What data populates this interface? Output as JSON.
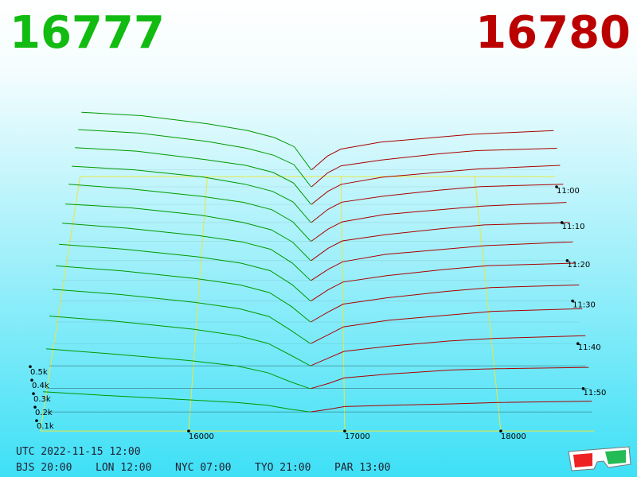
{
  "chart_data": {
    "type": "depth",
    "best_bid": "16777",
    "best_ask": "16780",
    "bid_color": "#009900",
    "ask_color": "#aa0000",
    "grid_color": "#e8e840",
    "bid_prices": [
      15050,
      15500,
      16000,
      16300,
      16500,
      16650,
      16777
    ],
    "ask_prices": [
      16780,
      16900,
      17000,
      17300,
      17700,
      18000,
      18600
    ],
    "snapshots": [
      {
        "t": -5,
        "bids": [
          0.5,
          0.47,
          0.4,
          0.34,
          0.28,
          0.2,
          0
        ],
        "asks": [
          0,
          0.12,
          0.18,
          0.24,
          0.28,
          0.31,
          0.34
        ]
      },
      {
        "t": 0,
        "bids": [
          0.49,
          0.46,
          0.39,
          0.33,
          0.27,
          0.19,
          0
        ],
        "asks": [
          0,
          0.12,
          0.18,
          0.23,
          0.28,
          0.31,
          0.33
        ]
      },
      {
        "t": 5,
        "bids": [
          0.48,
          0.45,
          0.38,
          0.33,
          0.27,
          0.18,
          0
        ],
        "asks": [
          0,
          0.11,
          0.17,
          0.23,
          0.27,
          0.3,
          0.33
        ]
      },
      {
        "t": 10,
        "bids": [
          0.47,
          0.44,
          0.38,
          0.32,
          0.26,
          0.17,
          0
        ],
        "asks": [
          0,
          0.11,
          0.17,
          0.22,
          0.27,
          0.3,
          0.32
        ]
      },
      {
        "t": 15,
        "bids": [
          0.47,
          0.43,
          0.37,
          0.32,
          0.26,
          0.16,
          0
        ],
        "asks": [
          0,
          0.1,
          0.16,
          0.22,
          0.26,
          0.29,
          0.32
        ]
      },
      {
        "t": 20,
        "bids": [
          0.46,
          0.43,
          0.37,
          0.31,
          0.25,
          0.15,
          0
        ],
        "asks": [
          0,
          0.1,
          0.16,
          0.21,
          0.26,
          0.29,
          0.31
        ]
      },
      {
        "t": 25,
        "bids": [
          0.46,
          0.42,
          0.36,
          0.31,
          0.25,
          0.14,
          0
        ],
        "asks": [
          0,
          0.09,
          0.15,
          0.21,
          0.25,
          0.28,
          0.31
        ]
      },
      {
        "t": 30,
        "bids": [
          0.45,
          0.41,
          0.35,
          0.3,
          0.24,
          0.13,
          0
        ],
        "asks": [
          0,
          0.09,
          0.15,
          0.2,
          0.25,
          0.28,
          0.3
        ]
      },
      {
        "t": 35,
        "bids": [
          0.44,
          0.4,
          0.34,
          0.29,
          0.23,
          0.12,
          0
        ],
        "asks": [
          0,
          0.08,
          0.14,
          0.19,
          0.24,
          0.27,
          0.29
        ]
      },
      {
        "t": 40,
        "bids": [
          0.42,
          0.38,
          0.32,
          0.27,
          0.21,
          0.1,
          0
        ],
        "asks": [
          0,
          0.07,
          0.13,
          0.18,
          0.22,
          0.25,
          0.27
        ]
      },
      {
        "t": 45,
        "bids": [
          0.38,
          0.34,
          0.28,
          0.23,
          0.17,
          0.08,
          0
        ],
        "asks": [
          0,
          0.06,
          0.11,
          0.15,
          0.19,
          0.21,
          0.23
        ]
      },
      {
        "t": 50,
        "bids": [
          0.3,
          0.26,
          0.21,
          0.17,
          0.12,
          0.05,
          0
        ],
        "asks": [
          0,
          0.04,
          0.08,
          0.11,
          0.14,
          0.15,
          0.16
        ]
      },
      {
        "t": 55,
        "bids": [
          0.15,
          0.12,
          0.09,
          0.07,
          0.05,
          0.02,
          0
        ],
        "asks": [
          0,
          0.02,
          0.04,
          0.05,
          0.06,
          0.07,
          0.08
        ]
      }
    ],
    "xticks": [
      16000,
      17000,
      18000
    ],
    "time_ticks": [
      {
        "value": 0,
        "label": "11:00"
      },
      {
        "value": 10,
        "label": "11:10"
      },
      {
        "value": 20,
        "label": "11:20"
      },
      {
        "value": 30,
        "label": "11:30"
      },
      {
        "value": 40,
        "label": "11:40"
      },
      {
        "value": 50,
        "label": "11:50"
      }
    ],
    "depth_ticks": [
      {
        "value": 0.1,
        "label": "0.1k"
      },
      {
        "value": 0.2,
        "label": "0.2k"
      },
      {
        "value": 0.3,
        "label": "0.3k"
      },
      {
        "value": 0.4,
        "label": "0.4k"
      },
      {
        "value": 0.5,
        "label": "0.5k"
      }
    ],
    "utc": "UTC 2022-11-15 12:00",
    "zones": [
      "BJS 20:00",
      "LON 12:00",
      "NYC 07:00",
      "TYO 21:00",
      "PAR 13:00"
    ]
  }
}
